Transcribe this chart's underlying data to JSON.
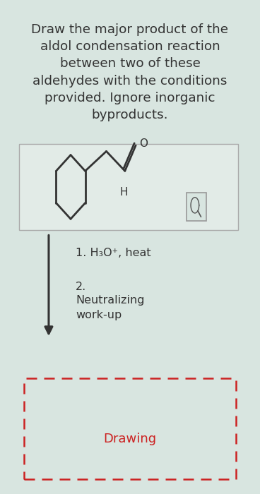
{
  "background_color": "#d8e5e0",
  "title_lines": [
    "Draw the major product of the",
    "aldol condensation reaction",
    "between two of these",
    "aldehydes with the conditions",
    "provided. Ignore inorganic",
    "byproducts."
  ],
  "title_fontsize": 13.2,
  "step1_text": "1. H₃O⁺, heat",
  "step2_line1": "2.",
  "step2_line2": "Neutralizing",
  "step2_line3": "work-up",
  "drawing_text": "Drawing",
  "line_color": "#333333",
  "text_color": "#333333",
  "drawing_text_color": "#cc2222",
  "mol_box_facecolor": "#e2ebe7",
  "mol_box_edgecolor": "#aaaaaa"
}
